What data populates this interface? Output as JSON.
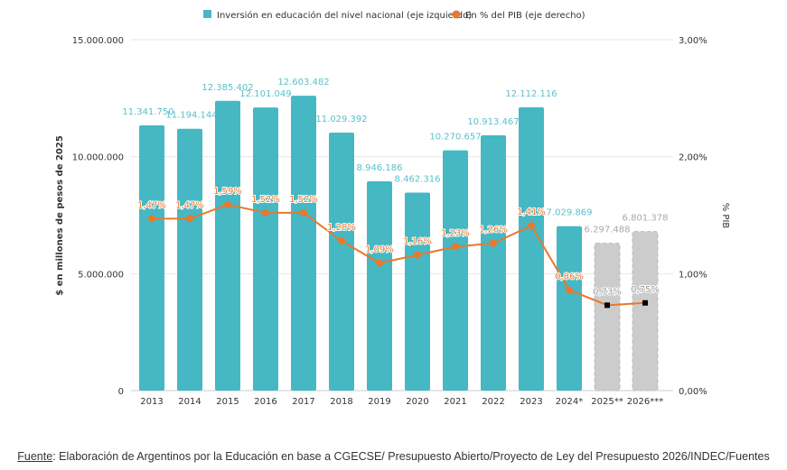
{
  "chart_data": {
    "type": "bar+line",
    "categories": [
      "2013",
      "2014",
      "2015",
      "2016",
      "2017",
      "2018",
      "2019",
      "2020",
      "2021",
      "2022",
      "2023",
      "2024*",
      "2025**",
      "2026***"
    ],
    "series": [
      {
        "name": "Inversión en educación del nivel nacional (eje izquierdo)",
        "type": "bar",
        "axis": "left",
        "color": "#45b8c4",
        "projected_color": "#cccccc",
        "values": [
          11341750,
          11194144,
          12385402,
          12101049,
          12603482,
          11029392,
          8946186,
          8462316,
          10270657,
          10913467,
          12112116,
          7029869,
          6297488,
          6801378
        ],
        "labels": [
          "11.341.750",
          "11.194.144",
          "12.385.402",
          "12.101.049",
          "12.603.482",
          "11.029.392",
          "8.946.186",
          "8.462.316",
          "10.270.657",
          "10.913.467",
          "12.112.116",
          "7.029.869",
          "6.297.488",
          "6.801.378"
        ],
        "projected": [
          false,
          false,
          false,
          false,
          false,
          false,
          false,
          false,
          false,
          false,
          false,
          false,
          true,
          true
        ]
      },
      {
        "name": "En % del PIB (eje derecho)",
        "type": "line",
        "axis": "right",
        "color": "#e8782e",
        "values": [
          1.47,
          1.47,
          1.59,
          1.52,
          1.52,
          1.28,
          1.09,
          1.16,
          1.23,
          1.26,
          1.41,
          0.86,
          0.73,
          0.75
        ],
        "labels": [
          "1,47%",
          "1,47%",
          "1,59%",
          "1,52%",
          "1,52%",
          "1,28%",
          "1,09%",
          "1,16%",
          "1,23%",
          "1,26%",
          "1,41%",
          "0,86%",
          "0,73%",
          "0,75%"
        ]
      }
    ],
    "ylabel": "$ en millones de pesos de 2025",
    "y2label": "% PIB",
    "ylim": [
      0,
      15000000
    ],
    "y2lim": [
      0,
      3
    ],
    "yticks": [
      "0",
      "5.000.000",
      "10.000.000",
      "15.000.000"
    ],
    "y2ticks": [
      "0,00%",
      "1,00%",
      "2,00%",
      "3,00%"
    ],
    "legend": "top",
    "grid": true
  },
  "footnote": {
    "label": "Fuente",
    "text": ": Elaboración de Argentinos por la Educación en base a CGECSE/ Presupuesto Abierto/Proyecto de Ley del Presupuesto 2026/INDEC/Fuentes"
  }
}
